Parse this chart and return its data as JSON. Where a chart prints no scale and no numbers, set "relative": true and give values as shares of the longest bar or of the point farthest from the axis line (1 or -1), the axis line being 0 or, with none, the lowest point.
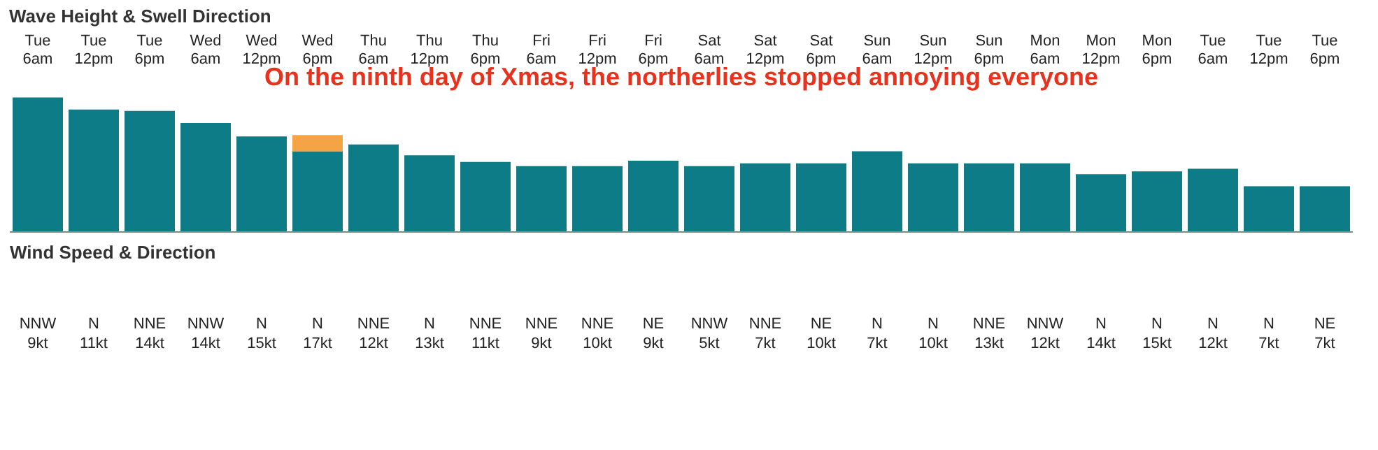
{
  "chart_data": [
    {
      "type": "bar",
      "title": "Wave Height & Swell Direction",
      "relative": true,
      "stacked": true,
      "categories": [
        "Tue 6am",
        "Tue 12pm",
        "Tue 6pm",
        "Wed 6am",
        "Wed 12pm",
        "Wed 6pm",
        "Thu 6am",
        "Thu 12pm",
        "Thu 6pm",
        "Fri 6am",
        "Fri 12pm",
        "Fri 6pm",
        "Sat 6am",
        "Sat 12pm",
        "Sat 6pm",
        "Sun 6am",
        "Sun 12pm",
        "Sun 6pm",
        "Mon 6am",
        "Mon 12pm",
        "Mon 6pm",
        "Tue 6am",
        "Tue 12pm",
        "Tue 6pm"
      ],
      "series": [
        {
          "color": "#0e7c86",
          "values": [
            1.0,
            0.91,
            0.9,
            0.81,
            0.71,
            0.6,
            0.65,
            0.57,
            0.52,
            0.49,
            0.49,
            0.53,
            0.49,
            0.51,
            0.51,
            0.6,
            0.51,
            0.51,
            0.51,
            0.43,
            0.45,
            0.47,
            0.34,
            0.34
          ]
        },
        {
          "color": "#f5a445",
          "values": [
            null,
            null,
            null,
            null,
            null,
            0.12,
            null,
            null,
            null,
            null,
            null,
            null,
            null,
            null,
            null,
            null,
            null,
            null,
            null,
            null,
            null,
            null,
            null,
            null
          ]
        }
      ],
      "annotations": [
        "On the ninth day of Xmas, the northerlies stopped annoying everyone"
      ],
      "legend": false
    },
    {
      "type": "other",
      "title": "Wind Speed & Direction",
      "value_labels": [
        "NNW 9kt",
        "N 11kt",
        "NNE 14kt",
        "NNW 14kt",
        "N 15kt",
        "N 17kt",
        "NNE 12kt",
        "N 13kt",
        "NNE 11kt",
        "NNE 9kt",
        "NNE 10kt",
        "NE 9kt",
        "NNW 5kt",
        "NNE 7kt",
        "NE 10kt",
        "N 7kt",
        "N 10kt",
        "NNE 13kt",
        "NNW 12kt",
        "N 14kt",
        "N 15kt",
        "N 12kt",
        "N 7kt",
        "NE 7kt"
      ]
    }
  ]
}
